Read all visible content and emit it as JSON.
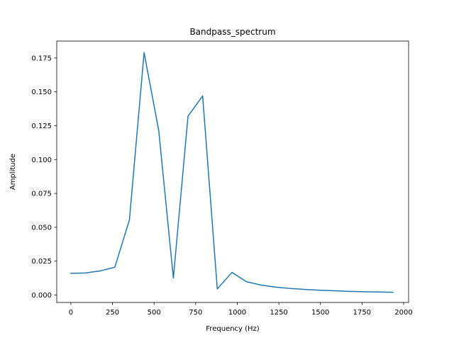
{
  "chart_data": {
    "type": "line",
    "title": "Bandpass_spectrum",
    "xlabel": "Frequency (Hz)",
    "ylabel": "Amplitude",
    "xlim": [
      -85,
      2030
    ],
    "ylim": [
      -0.0055,
      0.1875
    ],
    "x_ticks": [
      0,
      250,
      500,
      750,
      1000,
      1250,
      1500,
      1750,
      2000
    ],
    "x_tick_labels": [
      "0",
      "250",
      "500",
      "750",
      "1000",
      "1250",
      "1500",
      "1750",
      "2000"
    ],
    "y_ticks": [
      0.0,
      0.025,
      0.05,
      0.075,
      0.1,
      0.125,
      0.15,
      0.175
    ],
    "y_tick_labels": [
      "0.000",
      "0.025",
      "0.050",
      "0.075",
      "0.100",
      "0.125",
      "0.150",
      "0.175"
    ],
    "grid": false,
    "series": [
      {
        "color": "#1f77b4",
        "x": [
          0,
          88,
          176,
          264,
          352,
          440,
          528,
          616,
          704,
          792,
          880,
          968,
          1056,
          1144,
          1232,
          1320,
          1408,
          1496,
          1584,
          1672,
          1760,
          1848,
          1936
        ],
        "y": [
          0.016,
          0.0163,
          0.0178,
          0.0205,
          0.0555,
          0.179,
          0.1215,
          0.0125,
          0.132,
          0.147,
          0.0045,
          0.0167,
          0.0098,
          0.0073,
          0.0058,
          0.0048,
          0.0041,
          0.0035,
          0.0031,
          0.0027,
          0.0024,
          0.0022,
          0.002
        ]
      }
    ]
  }
}
